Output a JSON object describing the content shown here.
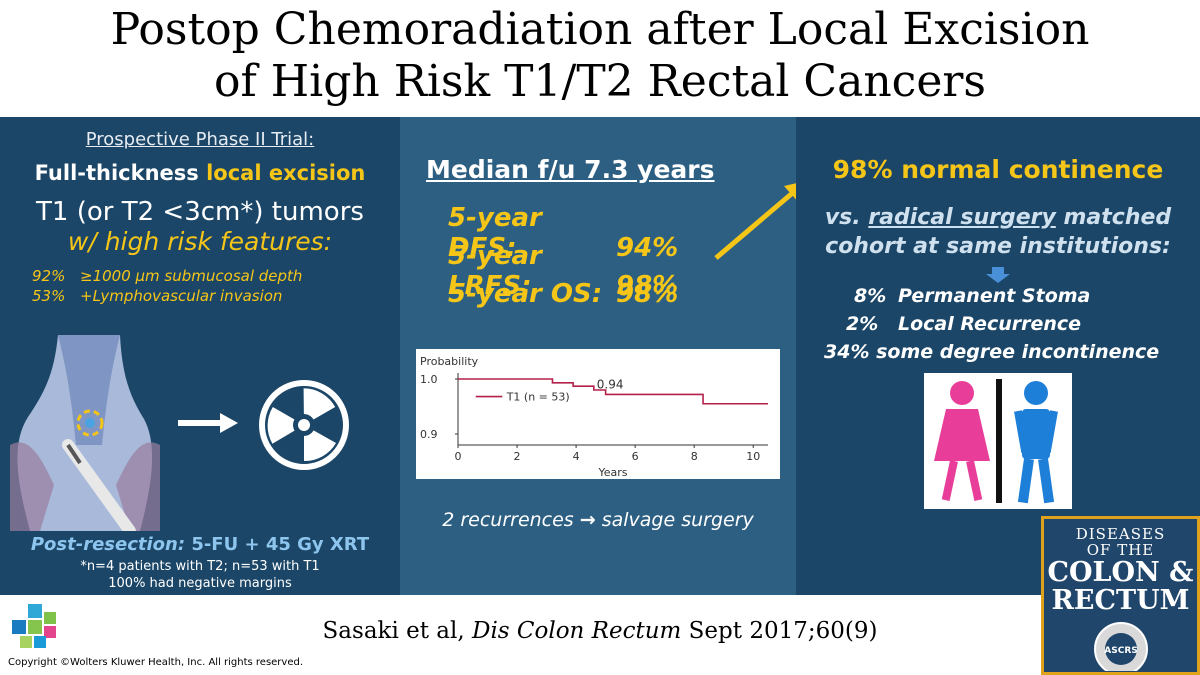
{
  "title": {
    "line1": "Postop Chemoradiation after Local Excision",
    "line2": "of High Risk T1/T2 Rectal Cancers"
  },
  "left": {
    "subtitle": "Prospective Phase II Trial:",
    "heading_part1": "Full-thickness ",
    "heading_part2": "local excision",
    "heading_line2": "T1 (or T2 <3cm*) tumors",
    "heading_line3": "w/ high risk features:",
    "stats": [
      {
        "pct": "92%",
        "text": "≥1000 μm submucosal depth"
      },
      {
        "pct": "53%",
        "text": "+Lymphovascular invasion"
      }
    ],
    "post_label": "Post-resection:",
    "post_value": "5-FU + 45 Gy XRT",
    "note1": "*n=4 patients with T2;  n=53 with T1",
    "note2": "100% had negative margins"
  },
  "middle": {
    "heading": "Median f/u 7.3 years",
    "stats": [
      {
        "label": "5-year DFS:",
        "value": "94%"
      },
      {
        "label": "5-year LRFS:",
        "value": "98%"
      },
      {
        "label": "5-year OS:",
        "value": "98%"
      }
    ],
    "chart_data": {
      "type": "line",
      "ylabel": "Probability",
      "xlabel": "Years",
      "x_ticks": [
        "0",
        "2",
        "4",
        "6",
        "8",
        "10"
      ],
      "y_ticks": [
        "1.0",
        "0.9"
      ],
      "ylim": [
        0.88,
        1.0
      ],
      "xlim": [
        0,
        10.5
      ],
      "annotation": "0.94",
      "series": [
        {
          "name": "T1 (n = 53)",
          "color": "#b5204a",
          "points": [
            [
              0,
              1.0
            ],
            [
              3.2,
              1.0
            ],
            [
              3.2,
              0.993
            ],
            [
              3.9,
              0.993
            ],
            [
              3.9,
              0.987
            ],
            [
              4.6,
              0.987
            ],
            [
              4.6,
              0.98
            ],
            [
              5.0,
              0.98
            ],
            [
              5.0,
              0.972
            ],
            [
              8.3,
              0.972
            ],
            [
              8.3,
              0.955
            ],
            [
              10.5,
              0.955
            ]
          ]
        }
      ]
    },
    "footer_part1": "2 recurrences ",
    "footer_arrow": "→",
    "footer_part2": " salvage surgery"
  },
  "right": {
    "heading": "98% normal continence",
    "sub_part1": "vs. ",
    "sub_underlined": "radical surgery",
    "sub_part2": " matched",
    "sub_line2": "cohort at same institutions:",
    "items": [
      {
        "pct": "8%",
        "text": "Permanent Stoma"
      },
      {
        "pct": "2%",
        "text": "Local Recurrence"
      },
      {
        "pct": "34%",
        "text": "some degree incontinence"
      }
    ]
  },
  "citation": {
    "authors": "Sasaki et al, ",
    "journal": "Dis Colon Rectum",
    "details": " Sept 2017;60(9)"
  },
  "copyright": "Copyright ©Wolters Kluwer Health, Inc. All rights reserved.",
  "journal_cover": {
    "line1": "DISEASES",
    "line2": "OF THE",
    "line3": "COLON &",
    "line4": "RECTUM",
    "seal": "ASCRS"
  }
}
